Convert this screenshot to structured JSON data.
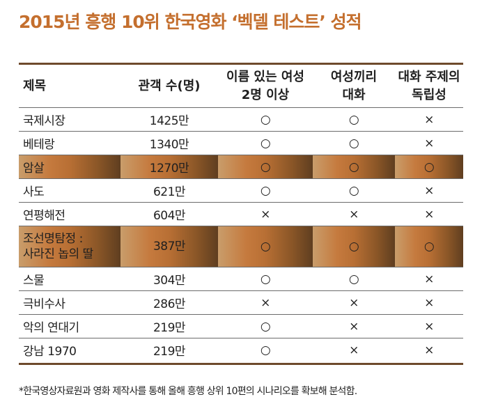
{
  "title": "2015년 흥행 10위 한국영화 ‘벡델 테스트’ 성적",
  "headers": {
    "col1": "제목",
    "col2": "관객 수(명)",
    "col3": [
      "이름 있는 여성",
      "2명 이상"
    ],
    "col4": [
      "여성끼리",
      "대화"
    ],
    "col5": [
      "대화 주제의",
      "독립성"
    ]
  },
  "rows": [
    {
      "title": "국제시장",
      "audience": "1425만",
      "c1": "○",
      "c2": "○",
      "c3": "×"
    },
    {
      "title": "베테랑",
      "audience": "1340만",
      "c1": "○",
      "c2": "○",
      "c3": "×"
    },
    {
      "title": "암살",
      "audience": "1270만",
      "c1": "○",
      "c2": "○",
      "c3": "○",
      "highlight": true
    },
    {
      "title": "사도",
      "audience": "621만",
      "c1": "○",
      "c2": "○",
      "c3": "×"
    },
    {
      "title": "연평해전",
      "audience": "604만",
      "c1": "×",
      "c2": "×",
      "c3": "×"
    },
    {
      "title": [
        "조선명탐정 :",
        "사라진 놉의 딸"
      ],
      "audience": "387만",
      "c1": "○",
      "c2": "○",
      "c3": "○",
      "highlight": true
    },
    {
      "title": "스물",
      "audience": "304만",
      "c1": "○",
      "c2": "○",
      "c3": "×"
    },
    {
      "title": "극비수사",
      "audience": "286만",
      "c1": "×",
      "c2": "×",
      "c3": "×"
    },
    {
      "title": "악의 연대기",
      "audience": "219만",
      "c1": "○",
      "c2": "×",
      "c3": "×"
    },
    {
      "title": "강남 1970",
      "audience": "219만",
      "c1": "○",
      "c2": "×",
      "c3": "×"
    }
  ],
  "footnote": "*한국영상자료원과 영화 제작사를 통해 올해 흥행 상위 10편의 시나리오를 확보해 분석함.",
  "colors": {
    "title": "#c46f2e",
    "rule": "#6e4a2c",
    "highlight_from": "#c99d6b",
    "highlight_mid": "#c57a3e",
    "highlight_to": "#5f3e20"
  }
}
